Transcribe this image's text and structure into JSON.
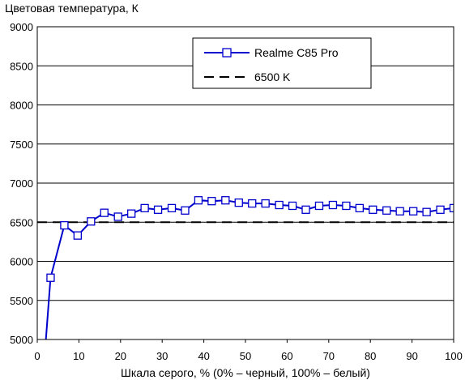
{
  "chart_data": {
    "type": "line",
    "ylabel": "Цветовая температура, К",
    "xlabel": "Шкала серого, % (0% – черный, 100% – белый)",
    "xlim": [
      0,
      100
    ],
    "ylim": [
      5000,
      9000
    ],
    "x_ticks": [
      0,
      10,
      20,
      30,
      40,
      50,
      60,
      70,
      80,
      90,
      100
    ],
    "y_ticks": [
      5000,
      5500,
      6000,
      6500,
      7000,
      7500,
      8000,
      8500,
      9000
    ],
    "grid": true,
    "legend_position": "top-right",
    "series": [
      {
        "name": "Realme C85 Pro",
        "color": "#0000cc",
        "marker": "square",
        "x": [
          2,
          3.2,
          6.5,
          9.7,
          12.9,
          16.1,
          19.4,
          22.6,
          25.8,
          29.0,
          32.3,
          35.5,
          38.7,
          41.9,
          45.2,
          48.4,
          51.6,
          54.8,
          58.1,
          61.3,
          64.5,
          67.7,
          71.0,
          74.2,
          77.4,
          80.6,
          83.9,
          87.1,
          90.3,
          93.5,
          96.8,
          100
        ],
        "values": [
          4950,
          5790,
          6460,
          6330,
          6510,
          6620,
          6570,
          6610,
          6680,
          6660,
          6680,
          6650,
          6780,
          6770,
          6780,
          6750,
          6740,
          6740,
          6720,
          6710,
          6660,
          6710,
          6720,
          6710,
          6680,
          6660,
          6650,
          6640,
          6640,
          6630,
          6660,
          6680
        ]
      },
      {
        "name": "6500 K",
        "color": "#000000",
        "dash": "dashed",
        "x": [
          0,
          100
        ],
        "values": [
          6500,
          6500
        ]
      }
    ]
  }
}
